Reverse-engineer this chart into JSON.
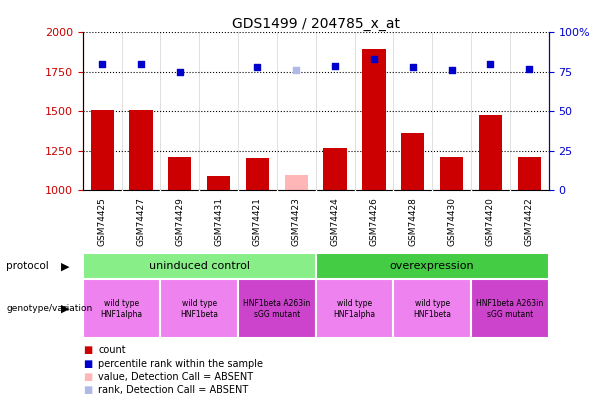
{
  "title": "GDS1499 / 204785_x_at",
  "samples": [
    "GSM74425",
    "GSM74427",
    "GSM74429",
    "GSM74431",
    "GSM74421",
    "GSM74423",
    "GSM74424",
    "GSM74426",
    "GSM74428",
    "GSM74430",
    "GSM74420",
    "GSM74422"
  ],
  "counts": [
    1510,
    1510,
    1210,
    1090,
    1205,
    null,
    1265,
    1895,
    1360,
    1210,
    1480,
    1210
  ],
  "counts_absent": [
    null,
    null,
    null,
    null,
    null,
    1100,
    null,
    null,
    null,
    null,
    null,
    null
  ],
  "percentile_ranks": [
    80,
    80,
    75,
    null,
    78,
    null,
    79,
    83,
    78,
    76,
    80,
    77
  ],
  "percentile_ranks_absent": [
    null,
    null,
    null,
    null,
    null,
    76,
    null,
    null,
    null,
    null,
    null,
    null
  ],
  "ylim_left": [
    1000,
    2000
  ],
  "ylim_right": [
    0,
    100
  ],
  "yticks_left": [
    1000,
    1250,
    1500,
    1750,
    2000
  ],
  "yticks_right": [
    0,
    25,
    50,
    75,
    100
  ],
  "bar_color": "#cc0000",
  "bar_absent_color": "#ffb6b6",
  "dot_color": "#0000cc",
  "dot_absent_color": "#b0b8e8",
  "grid_color": "#888888",
  "xticklabel_bg": "#cccccc",
  "protocol_groups": [
    {
      "label": "uninduced control",
      "start": 0,
      "end": 6,
      "color": "#88ee88"
    },
    {
      "label": "overexpression",
      "start": 6,
      "end": 12,
      "color": "#44cc44"
    }
  ],
  "genotype_groups": [
    {
      "label": "wild type\nHNF1alpha",
      "start": 0,
      "end": 2,
      "color": "#ee82ee"
    },
    {
      "label": "wild type\nHNF1beta",
      "start": 2,
      "end": 4,
      "color": "#ee82ee"
    },
    {
      "label": "HNF1beta A263in\nsGG mutant",
      "start": 4,
      "end": 6,
      "color": "#cc44cc"
    },
    {
      "label": "wild type\nHNF1alpha",
      "start": 6,
      "end": 8,
      "color": "#ee82ee"
    },
    {
      "label": "wild type\nHNF1beta",
      "start": 8,
      "end": 10,
      "color": "#ee82ee"
    },
    {
      "label": "HNF1beta A263in\nsGG mutant",
      "start": 10,
      "end": 12,
      "color": "#cc44cc"
    }
  ],
  "legend_items": [
    {
      "label": "count",
      "color": "#cc0000"
    },
    {
      "label": "percentile rank within the sample",
      "color": "#0000cc"
    },
    {
      "label": "value, Detection Call = ABSENT",
      "color": "#ffb6b6"
    },
    {
      "label": "rank, Detection Call = ABSENT",
      "color": "#b0b8e8"
    }
  ],
  "tick_color_left": "#cc0000",
  "tick_color_right": "#0000cc"
}
